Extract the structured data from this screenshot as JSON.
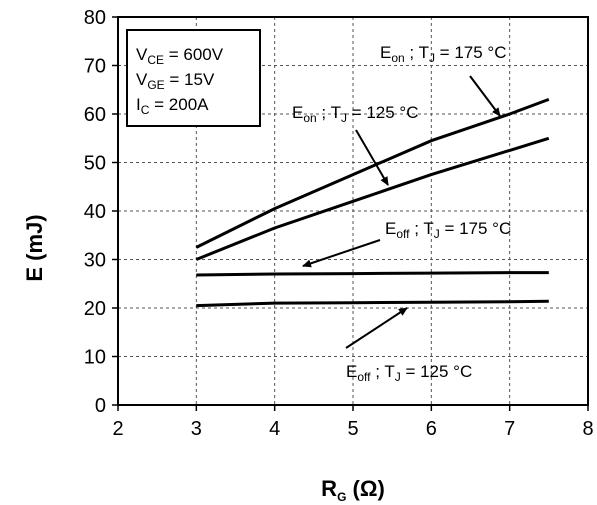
{
  "chart_data": {
    "type": "line",
    "xlabel": {
      "main": "R",
      "sub": "G",
      "unit": " (Ω)"
    },
    "ylabel": "E (mJ)",
    "xlim": [
      2,
      8
    ],
    "ylim": [
      0,
      80
    ],
    "xticks": [
      2,
      3,
      4,
      5,
      6,
      7,
      8
    ],
    "yticks": [
      0,
      10,
      20,
      30,
      40,
      50,
      60,
      70,
      80
    ],
    "grid": true,
    "conditions": [
      {
        "main": "V",
        "sub": "CE",
        "rest": " = 600V"
      },
      {
        "main": "V",
        "sub": "GE",
        "rest": " = 15V"
      },
      {
        "main": "I",
        "sub": "C",
        "rest": " = 200A"
      }
    ],
    "series": [
      {
        "id": "eon-175",
        "x": [
          3,
          4,
          5,
          6,
          7,
          7.5
        ],
        "y": [
          32.5,
          40.5,
          47.5,
          54.5,
          60,
          63
        ],
        "label": {
          "e": "E",
          "esub": "on",
          "sep": " ; T",
          "tsub": "J",
          "temp": " = 175 °C"
        }
      },
      {
        "id": "eon-125",
        "x": [
          3,
          4,
          5,
          6,
          7,
          7.5
        ],
        "y": [
          30,
          36.5,
          42,
          47.5,
          52.5,
          55
        ],
        "label": {
          "e": "E",
          "esub": "on",
          "sep": " ; T",
          "tsub": "J",
          "temp": " = 125 °C"
        }
      },
      {
        "id": "eoff-175",
        "x": [
          3,
          4,
          5,
          6,
          7,
          7.5
        ],
        "y": [
          26.8,
          27,
          27.1,
          27.2,
          27.3,
          27.3
        ],
        "label": {
          "e": "E",
          "esub": "off",
          "sep": " ; T",
          "tsub": "J",
          "temp": " = 175 °C"
        }
      },
      {
        "id": "eoff-125",
        "x": [
          3,
          4,
          5,
          6,
          7,
          7.5
        ],
        "y": [
          20.5,
          21,
          21.1,
          21.2,
          21.3,
          21.4
        ],
        "label": {
          "e": "E",
          "esub": "off",
          "sep": " ; T",
          "tsub": "J",
          "temp": " = 125 °C"
        }
      }
    ]
  }
}
